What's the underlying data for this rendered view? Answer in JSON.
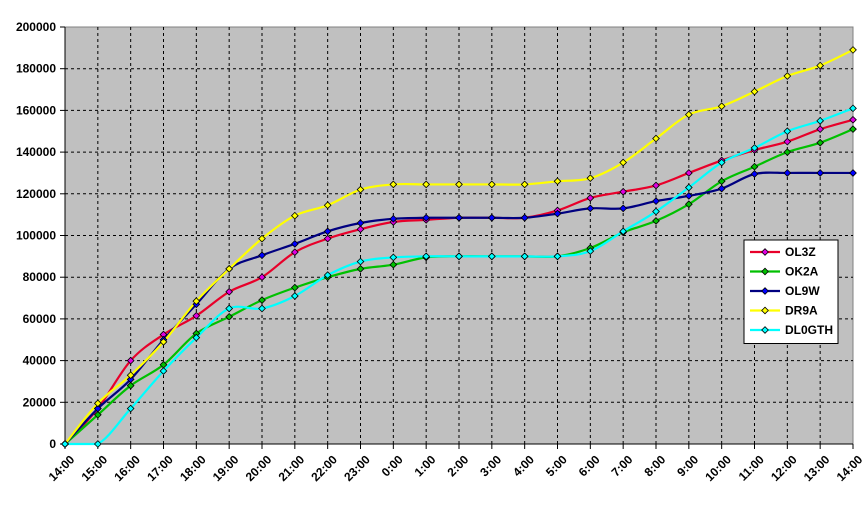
{
  "chart_data": {
    "type": "line",
    "title": "",
    "xlabel": "",
    "ylabel": "",
    "categories": [
      "14:00",
      "15:00",
      "16:00",
      "17:00",
      "18:00",
      "19:00",
      "20:00",
      "21:00",
      "22:00",
      "23:00",
      "0:00",
      "1:00",
      "2:00",
      "3:00",
      "4:00",
      "5:00",
      "6:00",
      "7:00",
      "8:00",
      "9:00",
      "10:00",
      "11:00",
      "12:00",
      "13:00",
      "14:00"
    ],
    "y_ticks": [
      "0",
      "20000",
      "40000",
      "60000",
      "80000",
      "100000",
      "120000",
      "140000",
      "160000",
      "180000",
      "200000"
    ],
    "ylim": [
      0,
      200000
    ],
    "grid": "horizontal and vertical dashed",
    "plot_background": "#c0c0c0",
    "legend_position": "right",
    "series": [
      {
        "name": "OL3Z",
        "color": "#e8002a",
        "marker_color": "#e000e0",
        "values": [
          0,
          17000,
          40000,
          52500,
          61500,
          73000,
          80000,
          92000,
          98500,
          103000,
          106500,
          107500,
          108500,
          108500,
          108500,
          112000,
          118000,
          121000,
          124000,
          130000,
          136000,
          141000,
          145000,
          151000,
          155500
        ]
      },
      {
        "name": "OK2A",
        "color": "#00c000",
        "marker_color": "#00c000",
        "values": [
          0,
          14000,
          28000,
          38000,
          53000,
          61000,
          69000,
          75000,
          80000,
          84000,
          86000,
          89500,
          90000,
          90000,
          90000,
          90000,
          94000,
          101500,
          107000,
          115000,
          126000,
          133000,
          140000,
          144500,
          151000
        ]
      },
      {
        "name": "OL9W",
        "color": "#000080",
        "marker_color": "#0000ff",
        "values": [
          0,
          17000,
          31000,
          50000,
          67000,
          84000,
          90500,
          96000,
          102000,
          106000,
          108000,
          108500,
          108500,
          108500,
          108500,
          110500,
          113000,
          113000,
          116500,
          119000,
          122500,
          129500,
          130000,
          130000,
          130000
        ]
      },
      {
        "name": "DR9A",
        "color": "#ffff00",
        "marker_color": "#ffff00",
        "values": [
          0,
          19500,
          33000,
          49000,
          68500,
          84000,
          98500,
          109500,
          114500,
          122000,
          124500,
          124500,
          124500,
          124500,
          124500,
          126000,
          127500,
          135000,
          146500,
          158000,
          162000,
          169000,
          176500,
          181500,
          189000
        ]
      },
      {
        "name": "DL0GTH",
        "color": "#00ffff",
        "marker_color": "#00ffff",
        "values": [
          0,
          0,
          17000,
          35000,
          51000,
          65000,
          65000,
          71000,
          81000,
          87500,
          89500,
          90000,
          90000,
          90000,
          90000,
          90000,
          92500,
          102000,
          111500,
          123000,
          135000,
          142000,
          150000,
          155000,
          161000
        ]
      }
    ]
  }
}
